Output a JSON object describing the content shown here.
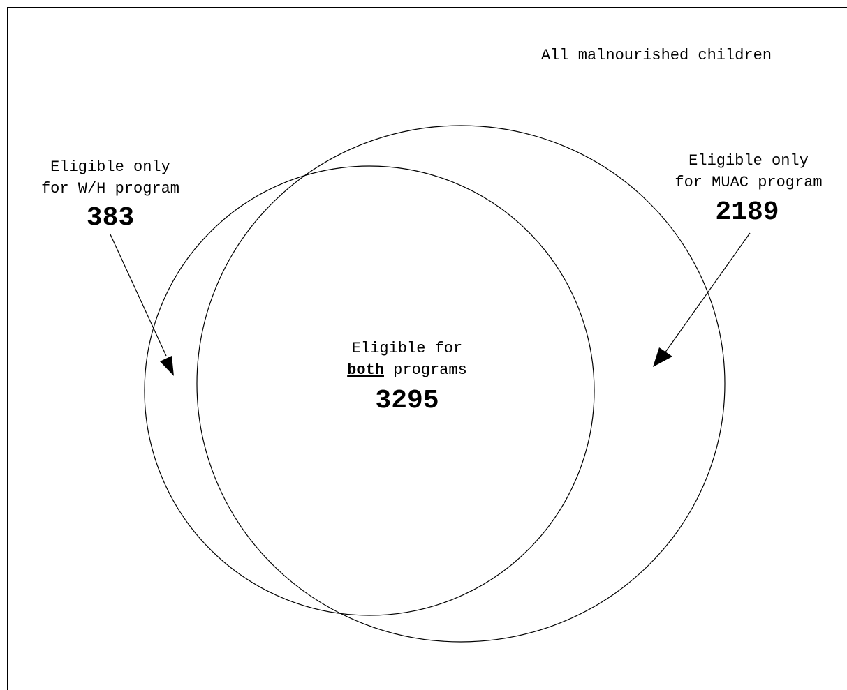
{
  "universe": {
    "label": "All malnourished children"
  },
  "wh_only": {
    "line1": "Eligible only",
    "line2": "for W/H program",
    "count": "383"
  },
  "muac_only": {
    "line1": "Eligible only",
    "line2": "for MUAC program",
    "count": "2189"
  },
  "both": {
    "line1": "Eligible for",
    "line2_emphasis": "both",
    "line2_rest": " programs",
    "count": "3295"
  },
  "colors": {
    "stroke": "#000000",
    "background": "#ffffff"
  }
}
